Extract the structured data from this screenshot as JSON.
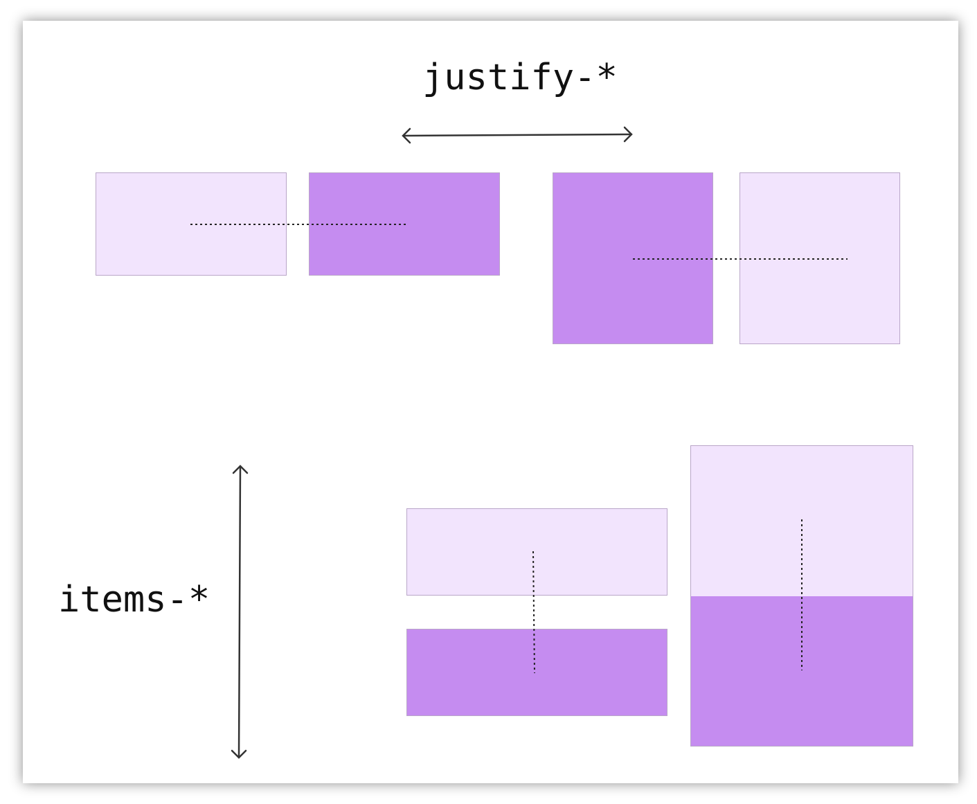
{
  "labels": {
    "justify": "justify-*",
    "items": "items-*"
  },
  "colors": {
    "light": "#f2e4fd",
    "dark": "#c58cf0"
  },
  "icons": [
    "double-headed-arrow-horizontal",
    "double-headed-arrow-vertical"
  ]
}
